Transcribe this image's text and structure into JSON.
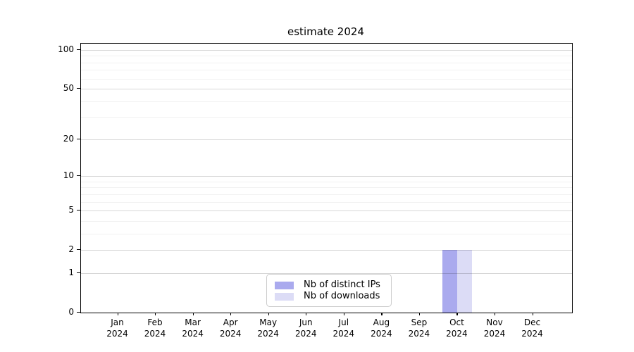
{
  "title": "estimate 2024",
  "colors": {
    "distinct_ips_bar": "#aaaaee",
    "downloads_bar": "#dcdcf6",
    "axis": "#000000",
    "grid_major": "#d9d9d9",
    "grid_minor": "#f0f0f0",
    "legend_border": "#cccccc"
  },
  "legend": {
    "items": [
      {
        "label": "Nb of distinct IPs",
        "color": "#aaaaee"
      },
      {
        "label": "Nb of downloads",
        "color": "#dcdcf6"
      }
    ]
  },
  "chart_data": {
    "type": "bar",
    "title": "estimate 2024",
    "categories": [
      "Jan 2024",
      "Feb 2024",
      "Mar 2024",
      "Apr 2024",
      "May 2024",
      "Jun 2024",
      "Jul 2024",
      "Aug 2024",
      "Sep 2024",
      "Oct 2024",
      "Nov 2024",
      "Dec 2024"
    ],
    "x_tick_month_lines": [
      "Jan",
      "Feb",
      "Mar",
      "Apr",
      "May",
      "Jun",
      "Jul",
      "Aug",
      "Sep",
      "Oct",
      "Nov",
      "Dec"
    ],
    "x_tick_year_line": "2024",
    "series": [
      {
        "name": "Nb of distinct IPs",
        "color": "#aaaaee",
        "values": [
          0,
          0,
          0,
          0,
          0,
          0,
          0,
          0,
          0,
          2,
          0,
          0
        ]
      },
      {
        "name": "Nb of downloads",
        "color": "#dcdcf6",
        "values": [
          0,
          0,
          0,
          0,
          0,
          0,
          0,
          0,
          0,
          2,
          0,
          0
        ]
      }
    ],
    "yscale": "log10(1+x)",
    "y_tick_labels": [
      0,
      1,
      2,
      5,
      10,
      20,
      50,
      100
    ],
    "y_minor_gridlines": [
      3,
      4,
      6,
      7,
      8,
      9,
      30,
      40,
      60,
      70,
      80,
      90
    ],
    "ylim": [
      0,
      112
    ],
    "grid": true,
    "legend_position": "lower center"
  }
}
